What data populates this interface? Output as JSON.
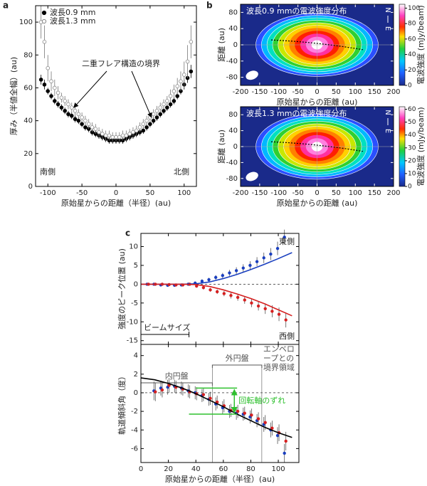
{
  "chart_data": [
    {
      "type": "scatter",
      "label": "a",
      "xlabel": "原始星からの距離（半径）(au)",
      "ylabel": "厚み（半値全幅）(au)",
      "xlim": [
        -118,
        118
      ],
      "ylim": [
        0,
        110
      ],
      "xticks": [
        -100,
        -50,
        0,
        50,
        100
      ],
      "yticks": [
        0,
        20,
        40,
        60,
        80,
        100
      ],
      "annotations": [
        "二重フレア構造の境界",
        "南側",
        "北側"
      ],
      "series": [
        {
          "name": "波長0.9 mm",
          "color": "#000000",
          "marker": "filled",
          "x": [
            -110,
            -105,
            -100,
            -95,
            -90,
            -85,
            -80,
            -75,
            -70,
            -65,
            -60,
            -55,
            -50,
            -45,
            -40,
            -35,
            -30,
            -25,
            -20,
            -15,
            -10,
            -5,
            0,
            5,
            10,
            15,
            20,
            25,
            30,
            35,
            40,
            45,
            50,
            55,
            60,
            65,
            70,
            75,
            80,
            85,
            90,
            95,
            100,
            105,
            110
          ],
          "values": [
            65,
            62,
            58,
            55,
            52,
            50,
            48,
            46,
            44,
            43,
            41,
            40,
            38,
            36,
            35,
            33,
            32,
            31,
            30,
            29,
            28,
            28,
            28,
            28,
            28,
            29,
            30,
            31,
            32,
            33,
            34,
            36,
            38,
            40,
            42,
            44,
            46,
            48,
            50,
            52,
            55,
            58,
            62,
            66,
            70
          ],
          "errors": [
            3,
            3,
            2,
            2,
            2,
            2,
            2,
            2,
            2,
            2,
            2,
            2,
            2,
            2,
            2,
            2,
            2,
            2,
            2,
            2,
            2,
            2,
            2,
            2,
            2,
            2,
            2,
            2,
            2,
            2,
            2,
            2,
            2,
            2,
            2,
            2,
            2,
            2,
            2,
            2,
            2,
            2,
            3,
            3,
            4
          ]
        },
        {
          "name": "波長1.3 mm",
          "color": "#888888",
          "marker": "open",
          "x": [
            -110,
            -105,
            -100,
            -95,
            -90,
            -85,
            -80,
            -75,
            -70,
            -65,
            -60,
            -55,
            -50,
            -45,
            -40,
            -35,
            -30,
            -25,
            -20,
            -15,
            -10,
            -5,
            0,
            5,
            10,
            15,
            20,
            25,
            30,
            35,
            40,
            45,
            50,
            55,
            60,
            65,
            70,
            75,
            80,
            85,
            90,
            95,
            100,
            105,
            110
          ],
          "values": [
            100,
            88,
            72,
            64,
            60,
            57,
            54,
            52,
            50,
            48,
            46,
            44,
            42,
            40,
            38,
            36,
            35,
            33,
            32,
            31,
            31,
            30,
            30,
            30,
            31,
            31,
            32,
            33,
            34,
            36,
            38,
            40,
            42,
            44,
            46,
            48,
            50,
            52,
            55,
            58,
            61,
            64,
            68,
            76,
            88
          ],
          "errors": [
            10,
            10,
            8,
            6,
            5,
            4,
            3,
            3,
            3,
            3,
            3,
            3,
            3,
            3,
            3,
            3,
            3,
            3,
            3,
            3,
            3,
            3,
            3,
            3,
            3,
            3,
            3,
            3,
            3,
            3,
            3,
            3,
            3,
            3,
            3,
            3,
            3,
            3,
            4,
            4,
            5,
            6,
            8,
            10,
            10
          ]
        }
      ]
    },
    {
      "type": "image",
      "label": "b",
      "title": "波長0.9 mmの電波強度分布",
      "xlabel": "原始星からの距離 (au)",
      "ylabel": "距離 (au)",
      "colorbar_label": "電波強度 (mJy/beam)",
      "compass": [
        "N",
        "E"
      ],
      "xlim": [
        -200,
        200
      ],
      "ylim": [
        -100,
        100
      ],
      "xticks": [
        -200,
        -150,
        -100,
        -50,
        0,
        50,
        100,
        150,
        200
      ],
      "yticks": [
        -80,
        -40,
        0,
        40,
        80
      ],
      "clim": [
        0,
        105
      ],
      "cticks": [
        0,
        20,
        40,
        60,
        80,
        100
      ]
    },
    {
      "type": "image",
      "title": "波長1.3 mmの電波強度分布",
      "xlabel": "原始星からの距離 (au)",
      "ylabel": "距離 (au)",
      "colorbar_label": "電波強度 (mJy/beam)",
      "compass": [
        "N",
        "E"
      ],
      "xlim": [
        -200,
        200
      ],
      "ylim": [
        -100,
        100
      ],
      "xticks": [
        -200,
        -150,
        -100,
        -50,
        0,
        50,
        100,
        150,
        200
      ],
      "yticks": [
        -80,
        -40,
        0,
        40,
        80
      ],
      "clim": [
        0,
        62
      ],
      "cticks": [
        0,
        10,
        20,
        30,
        40,
        50,
        60
      ]
    },
    {
      "type": "errorbar",
      "label": "c",
      "ylabel": "強度のピーク位置 (au)",
      "xlim": [
        0,
        115
      ],
      "ylim": [
        -16,
        13.5
      ],
      "xticks": [
        0,
        20,
        40,
        60,
        80,
        100
      ],
      "yticks": [
        -15,
        -10,
        -5,
        0,
        5,
        10
      ],
      "annotations": [
        "東側",
        "西側",
        "ビームサイズ"
      ],
      "beam": [
        0,
        35
      ],
      "series": [
        {
          "color": "#1a3fbf",
          "x": [
            5,
            10,
            15,
            20,
            25,
            30,
            35,
            40,
            45,
            50,
            55,
            60,
            65,
            70,
            75,
            80,
            85,
            90,
            95,
            100,
            105
          ],
          "values": [
            0,
            0,
            -0.2,
            -0.3,
            -0.3,
            -0.2,
            0,
            0.3,
            0.8,
            1.2,
            1.8,
            2.3,
            3,
            3.6,
            4.3,
            5,
            6,
            7,
            8,
            9.5,
            12.5
          ],
          "errors": [
            0.3,
            0.3,
            0.3,
            0.3,
            0.3,
            0.4,
            0.4,
            0.4,
            0.5,
            0.5,
            0.6,
            0.7,
            0.8,
            0.9,
            1,
            1.1,
            1.2,
            1.4,
            1.6,
            1.8,
            2
          ]
        },
        {
          "color": "#d62020",
          "x": [
            5,
            10,
            15,
            20,
            25,
            30,
            35,
            40,
            45,
            50,
            55,
            60,
            65,
            70,
            75,
            80,
            85,
            90,
            95,
            100,
            105
          ],
          "values": [
            0,
            0,
            0,
            -0.1,
            -0.2,
            -0.2,
            0,
            -0.5,
            -0.9,
            -1.5,
            -2,
            -2.5,
            -3,
            -3.5,
            -4.2,
            -5,
            -5.8,
            -6.5,
            -7.2,
            -8,
            -9.5
          ],
          "errors": [
            0.3,
            0.3,
            0.3,
            0.3,
            0.3,
            0.4,
            0.4,
            0.4,
            0.5,
            0.5,
            0.6,
            0.7,
            0.8,
            0.9,
            1,
            1.1,
            1.2,
            1.4,
            1.6,
            1.8,
            2
          ]
        },
        {
          "color": "#1a3fbf",
          "line": true,
          "x": [
            0,
            10,
            20,
            30,
            40,
            50,
            60,
            70,
            80,
            90,
            100,
            110
          ],
          "values": [
            0,
            0,
            0,
            0,
            0.1,
            0.6,
            1.5,
            2.6,
            3.9,
            5.3,
            6.8,
            8.4
          ]
        },
        {
          "color": "#d62020",
          "line": true,
          "x": [
            0,
            10,
            20,
            30,
            40,
            50,
            60,
            70,
            80,
            90,
            100,
            110
          ],
          "values": [
            0,
            0,
            0,
            0,
            -0.1,
            -0.6,
            -1.5,
            -2.6,
            -3.8,
            -5.2,
            -6.8,
            -8.4
          ]
        }
      ]
    },
    {
      "type": "errorbar",
      "xlabel": "原始星からの距離（半径）(au)",
      "ylabel": "軌道傾斜角（度）",
      "xlim": [
        0,
        115
      ],
      "ylim": [
        -7.5,
        5.2
      ],
      "xticks": [
        0,
        20,
        40,
        60,
        80,
        100
      ],
      "yticks": [
        -6,
        -4,
        -2,
        0,
        2,
        4
      ],
      "annotations": [
        "内円盤",
        "外円盤",
        "回転軸のずれ"
      ],
      "annotation_lines": [
        "エンベロ",
        "ープとの",
        "境界領域"
      ],
      "regions": [
        0,
        52,
        88
      ],
      "series": [
        {
          "color": "#1a3fbf",
          "x": [
            10,
            15,
            20,
            25,
            30,
            35,
            40,
            45,
            50,
            55,
            60,
            65,
            70,
            75,
            80,
            85,
            90,
            95,
            100,
            105
          ],
          "values": [
            0.2,
            0.5,
            0.6,
            0.7,
            0.5,
            0.2,
            0,
            -0.3,
            -0.7,
            -1.2,
            -1.6,
            -2,
            -2.2,
            -2.3,
            -2.6,
            -3,
            -3.4,
            -4,
            -4.6,
            -6.5
          ],
          "errors": [
            1,
            0.8,
            0.8,
            0.7,
            0.7,
            0.7,
            0.7,
            0.7,
            0.7,
            0.7,
            0.7,
            0.7,
            0.7,
            0.7,
            0.7,
            0.7,
            0.8,
            0.8,
            0.9,
            1
          ]
        },
        {
          "color": "#d62020",
          "x": [
            10,
            15,
            20,
            25,
            30,
            35,
            40,
            45,
            50,
            55,
            60,
            65,
            70,
            75,
            80,
            85,
            90,
            95,
            100,
            105
          ],
          "values": [
            0.1,
            0.3,
            0.8,
            0.6,
            0.4,
            0.1,
            -0.1,
            -0.2,
            -0.6,
            -1,
            -1.4,
            -1.9,
            -2,
            -2.2,
            -2.4,
            -2.8,
            -3.2,
            -3.8,
            -4.3,
            -5.2
          ],
          "errors": [
            1,
            0.8,
            0.8,
            0.7,
            0.7,
            0.7,
            0.7,
            0.7,
            0.7,
            0.7,
            0.7,
            0.7,
            0.7,
            0.7,
            0.7,
            0.7,
            0.8,
            0.8,
            0.9,
            1
          ]
        },
        {
          "color": "#000000",
          "line": true,
          "x": [
            0,
            10,
            20,
            30,
            40,
            50,
            60,
            70,
            80,
            90,
            100,
            110
          ],
          "values": [
            1.6,
            1.4,
            1.0,
            0.5,
            -0.1,
            -0.8,
            -1.5,
            -2.3,
            -3.0,
            -3.7,
            -4.3,
            -4.8
          ]
        }
      ]
    }
  ]
}
